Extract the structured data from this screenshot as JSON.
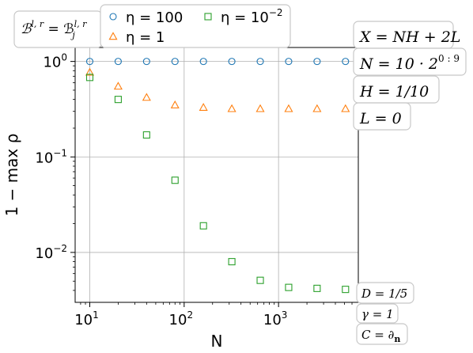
{
  "chart_data": {
    "type": "scatter",
    "xlabel": "N",
    "ylabel": "1 − max ρ",
    "x_scale": "log",
    "y_scale": "log",
    "xlim": [
      7,
      7000
    ],
    "ylim": [
      0.003,
      1.4
    ],
    "grid": true,
    "x_ticks": [
      {
        "value": 10,
        "base": "10",
        "exp": "1"
      },
      {
        "value": 100,
        "base": "10",
        "exp": "2"
      },
      {
        "value": 1000,
        "base": "10",
        "exp": "3"
      }
    ],
    "y_ticks": [
      {
        "value": 1,
        "base": "10",
        "exp": "0"
      },
      {
        "value": 0.1,
        "base": "10",
        "exp": "−1"
      },
      {
        "value": 0.01,
        "base": "10",
        "exp": "−2"
      }
    ],
    "x": [
      10,
      20,
      40,
      80,
      160,
      320,
      640,
      1280,
      2560,
      5120
    ],
    "series": [
      {
        "name": "η = 100",
        "marker": "circle",
        "color": "#1f77b4",
        "values": [
          1.0,
          1.0,
          1.0,
          1.0,
          1.0,
          1.0,
          1.0,
          1.0,
          1.0,
          1.0
        ]
      },
      {
        "name": "η = 1",
        "marker": "triangle",
        "color": "#ff7f0e",
        "values": [
          0.77,
          0.55,
          0.42,
          0.35,
          0.33,
          0.32,
          0.32,
          0.32,
          0.32,
          0.32
        ]
      },
      {
        "name": "η = 10⁻²",
        "marker": "square",
        "color": "#2ca02c",
        "values": [
          0.68,
          0.4,
          0.17,
          0.057,
          0.019,
          0.008,
          0.0051,
          0.0043,
          0.0042,
          0.0041
        ]
      }
    ],
    "annotations_right": [
      "X = NH + 2L",
      "N = 10 · 2^{0:9}",
      "H = 1/10",
      "L = 0"
    ],
    "annotations_bottom_right": [
      "D = 1/5",
      "γ = 1",
      "C = ∂n"
    ],
    "annotation_top_left": "B^{l,r} = B_j^{l,r}"
  }
}
